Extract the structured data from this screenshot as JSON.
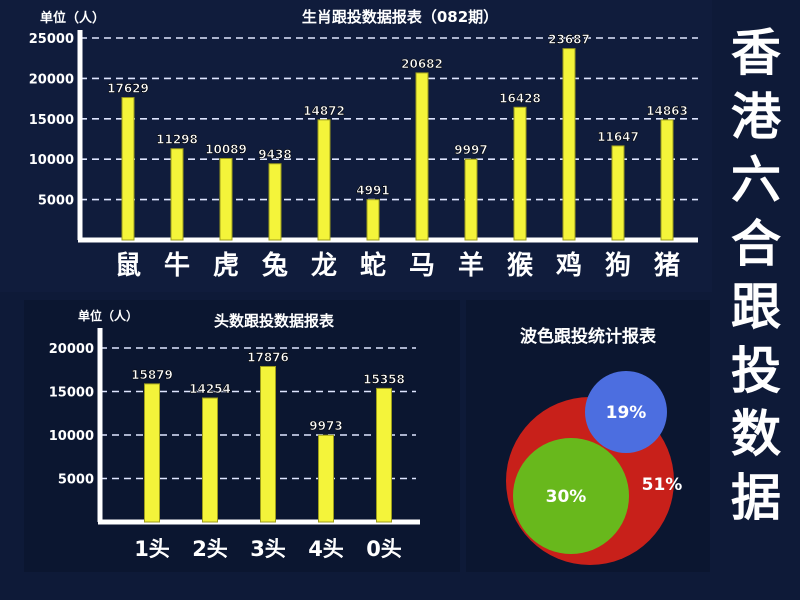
{
  "side_title": [
    "香",
    "港",
    "六",
    "合",
    "跟",
    "投",
    "数",
    "据"
  ],
  "colors": {
    "bar": "#f4f43a",
    "bar_shade": "#9c9c1c",
    "axis": "#ffffff",
    "grid": "#dfe6ff",
    "wave_red": "#c8201a",
    "wave_green": "#68b81c",
    "wave_blue": "#4c6ee0"
  },
  "chart_data": [
    {
      "type": "bar",
      "title": "生肖跟投数据报表（082期）",
      "unit_label": "单位（人）",
      "categories": [
        "鼠",
        "牛",
        "虎",
        "兔",
        "龙",
        "蛇",
        "马",
        "羊",
        "猴",
        "鸡",
        "狗",
        "猪"
      ],
      "values": [
        17629,
        11298,
        10089,
        9438,
        14872,
        4991,
        20682,
        9997,
        16428,
        23687,
        11647,
        14863
      ],
      "yticks": [
        5000,
        10000,
        15000,
        20000,
        25000
      ],
      "ylim": [
        0,
        25000
      ],
      "grid": true
    },
    {
      "type": "bar",
      "title": "头数跟投数据报表",
      "unit_label": "单位（人）",
      "categories": [
        "1头",
        "2头",
        "3头",
        "4头",
        "0头"
      ],
      "values": [
        15879,
        14254,
        17876,
        9973,
        15358
      ],
      "yticks": [
        5000,
        10000,
        15000,
        20000
      ],
      "ylim": [
        0,
        20000
      ],
      "grid": true
    },
    {
      "type": "pie",
      "title": "波色跟投统计报表",
      "labels": [
        "51%",
        "30%",
        "19%"
      ],
      "values": [
        51,
        30,
        19
      ]
    }
  ]
}
